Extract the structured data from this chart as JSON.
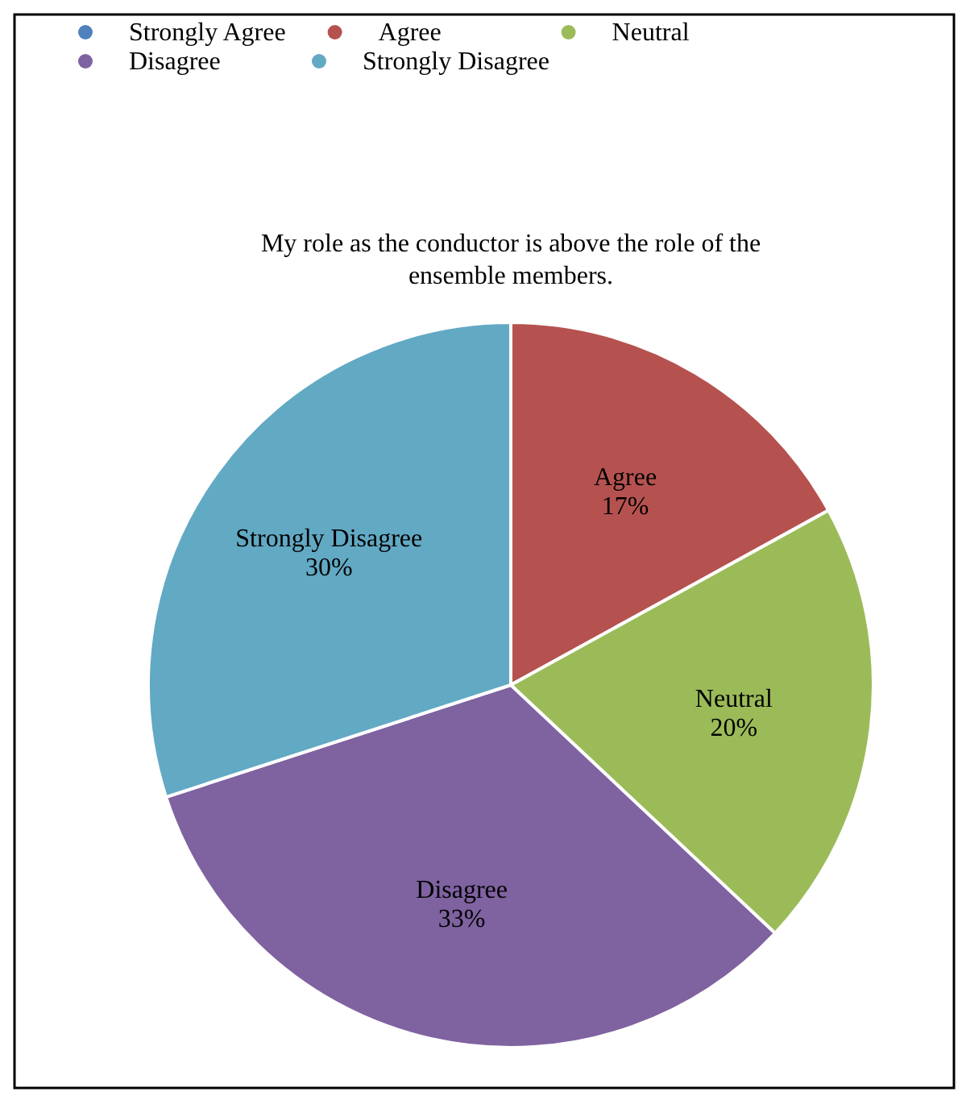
{
  "chart_data": {
    "type": "pie",
    "title": "My role as the conductor is above the role of the ensemble members.",
    "categories": [
      "Strongly Agree",
      "Agree",
      "Neutral",
      "Disagree",
      "Strongly Disagree"
    ],
    "values": [
      0,
      17,
      20,
      33,
      30
    ],
    "value_labels": [
      null,
      "17%",
      "20%",
      "33%",
      "30%"
    ],
    "colors": [
      "#4f81bd",
      "#b5524f",
      "#9bbb59",
      "#7f62a0",
      "#62a9c4"
    ],
    "legend": "top"
  }
}
